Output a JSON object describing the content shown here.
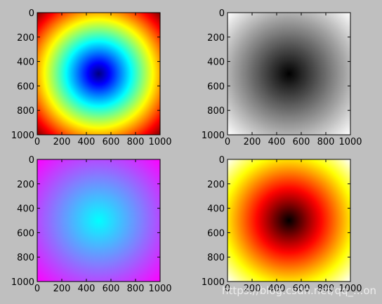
{
  "chart_data": [
    {
      "type": "heatmap",
      "colormap": "jet",
      "function": "distance from center (500, 500)",
      "x_range": [
        0,
        1000
      ],
      "y_range": [
        0,
        1000
      ],
      "y_inverted": true,
      "x_ticks": [
        "0",
        "200",
        "400",
        "600",
        "800",
        "1000"
      ],
      "y_ticks": [
        "0",
        "200",
        "400",
        "600",
        "800",
        "1000"
      ]
    },
    {
      "type": "heatmap",
      "colormap": "gray",
      "function": "distance from center (500, 500)",
      "x_range": [
        0,
        1000
      ],
      "y_range": [
        0,
        1000
      ],
      "y_inverted": true,
      "x_ticks": [
        "0",
        "200",
        "400",
        "600",
        "800",
        "1000"
      ],
      "y_ticks": [
        "0",
        "200",
        "400",
        "600",
        "800",
        "1000"
      ]
    },
    {
      "type": "heatmap",
      "colormap": "cool",
      "function": "distance from center (500, 500)",
      "x_range": [
        0,
        1000
      ],
      "y_range": [
        0,
        1000
      ],
      "y_inverted": true,
      "x_ticks": [
        "0",
        "200",
        "400",
        "600",
        "800",
        "1000"
      ],
      "y_ticks": [
        "0",
        "200",
        "400",
        "600",
        "800",
        "1000"
      ]
    },
    {
      "type": "heatmap",
      "colormap": "hot",
      "function": "distance from center (500, 500)",
      "x_range": [
        0,
        1000
      ],
      "y_range": [
        0,
        1000
      ],
      "y_inverted": true,
      "x_ticks": [
        "0",
        "200",
        "400",
        "600",
        "800",
        "1000"
      ],
      "y_ticks": [
        "0",
        "200",
        "400",
        "600",
        "800",
        "1000"
      ]
    }
  ],
  "watermark": "https://blog.csdn.net/qq_...on",
  "colors": {
    "background": "#bfbfbf"
  }
}
